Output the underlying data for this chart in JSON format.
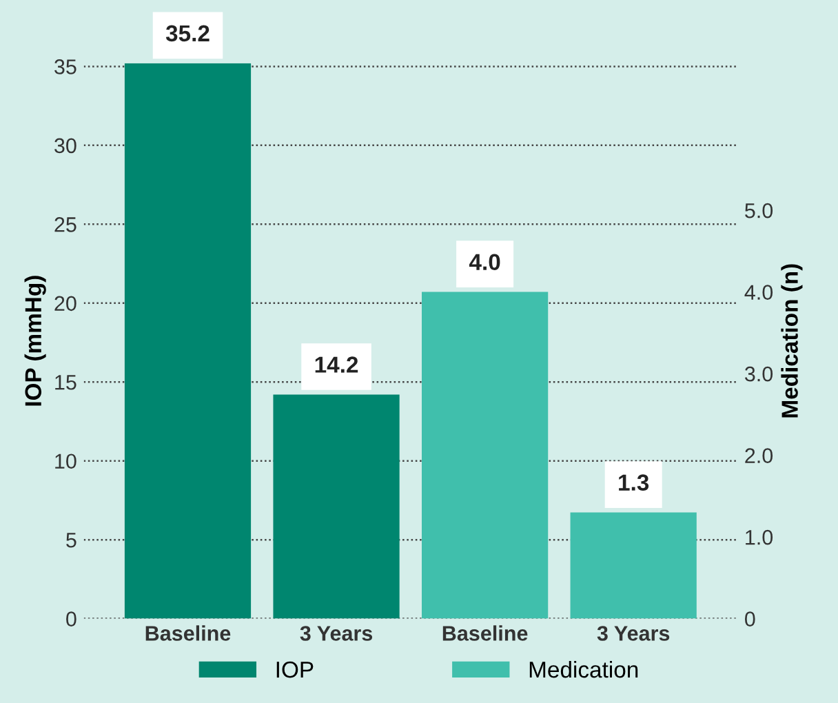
{
  "chart_data": {
    "type": "bar",
    "categories": [
      "Baseline",
      "3 Years",
      "Baseline",
      "3 Years"
    ],
    "series": [
      {
        "name": "IOP",
        "color": "#00866f",
        "values": [
          35.2,
          14.2,
          null,
          null
        ],
        "value_labels": [
          "35.2",
          "14.2",
          null,
          null
        ]
      },
      {
        "name": "Medication",
        "color": "#40bfac",
        "values": [
          null,
          null,
          4.0,
          1.3
        ],
        "value_labels": [
          null,
          null,
          "4.0",
          "1.3"
        ],
        "axis": "y2"
      }
    ],
    "ylabel": "IOP (mmHg)",
    "y2label": "Medication (n)",
    "ylim": [
      0,
      35.2
    ],
    "yticks": [
      0,
      5,
      10,
      15,
      20,
      25,
      30,
      35
    ],
    "y2lim": [
      0,
      6.8
    ],
    "y2ticks": [
      0,
      {
        "value": 1,
        "label": "1.0"
      },
      {
        "value": 2,
        "label": "2.0"
      },
      {
        "value": 3,
        "label": "3.0"
      },
      {
        "value": 4,
        "label": "4.0"
      },
      {
        "value": 5,
        "label": "5.0"
      }
    ],
    "grid": "y",
    "legend": "bottom"
  }
}
